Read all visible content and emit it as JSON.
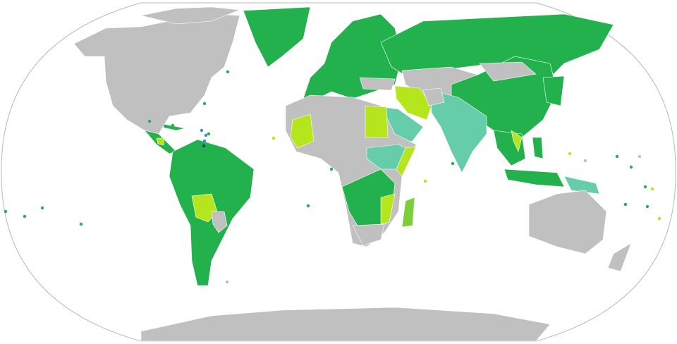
{
  "map": {
    "projection": "Robinson",
    "colors": {
      "ocean": "#ffffff",
      "outline": "#b8b8b8",
      "no_data": "#c0c0c0",
      "category_green": "#22b14c",
      "category_teal": "#66cdaa",
      "category_yellow_green": "#b5e61d",
      "category_light_green": "#7ccf3a",
      "category_blue": "#2f8fd8",
      "category_dark_blue": "#1a3a8a"
    }
  }
}
